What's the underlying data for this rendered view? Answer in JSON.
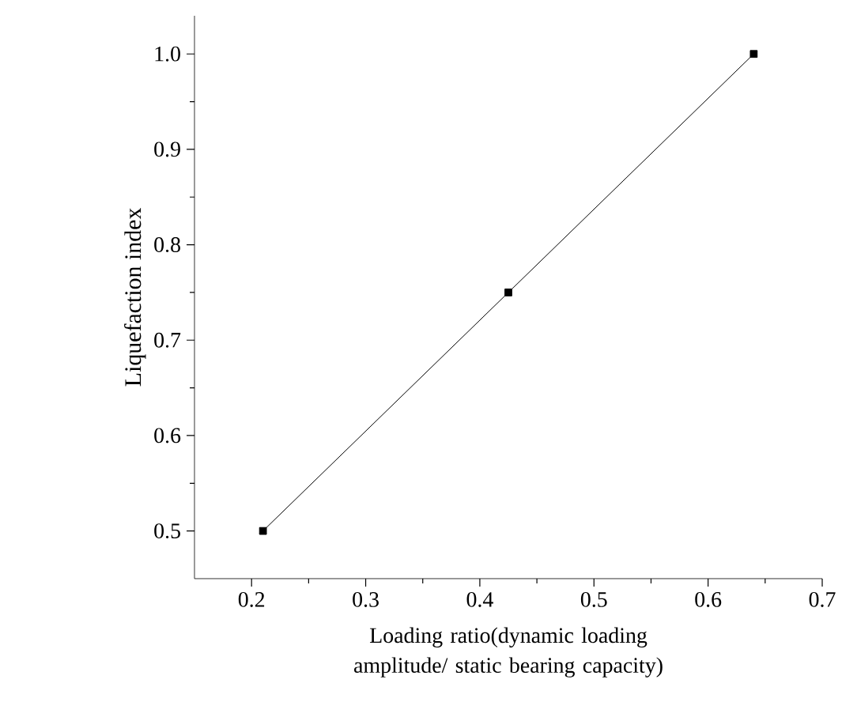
{
  "chart_data": {
    "type": "line",
    "xlabel": "Loading ratio(dynamic loading amplitude/ static bearing capacity)",
    "ylabel": "Liquefaction index",
    "x": [
      0.21,
      0.425,
      0.64
    ],
    "series": [
      {
        "color": "#000000",
        "values": [
          0.5,
          0.75,
          1.0
        ]
      }
    ],
    "marker": "square",
    "line_style": "solid",
    "xlim": [
      0.15,
      0.7
    ],
    "ylim": [
      0.45,
      1.04
    ],
    "xticks": [
      0.2,
      0.3,
      0.4,
      0.5,
      0.6,
      0.7
    ],
    "yticks": [
      0.5,
      0.6,
      0.7,
      0.8,
      0.9,
      {
        "value": 1,
        "label": "1.0"
      }
    ]
  }
}
